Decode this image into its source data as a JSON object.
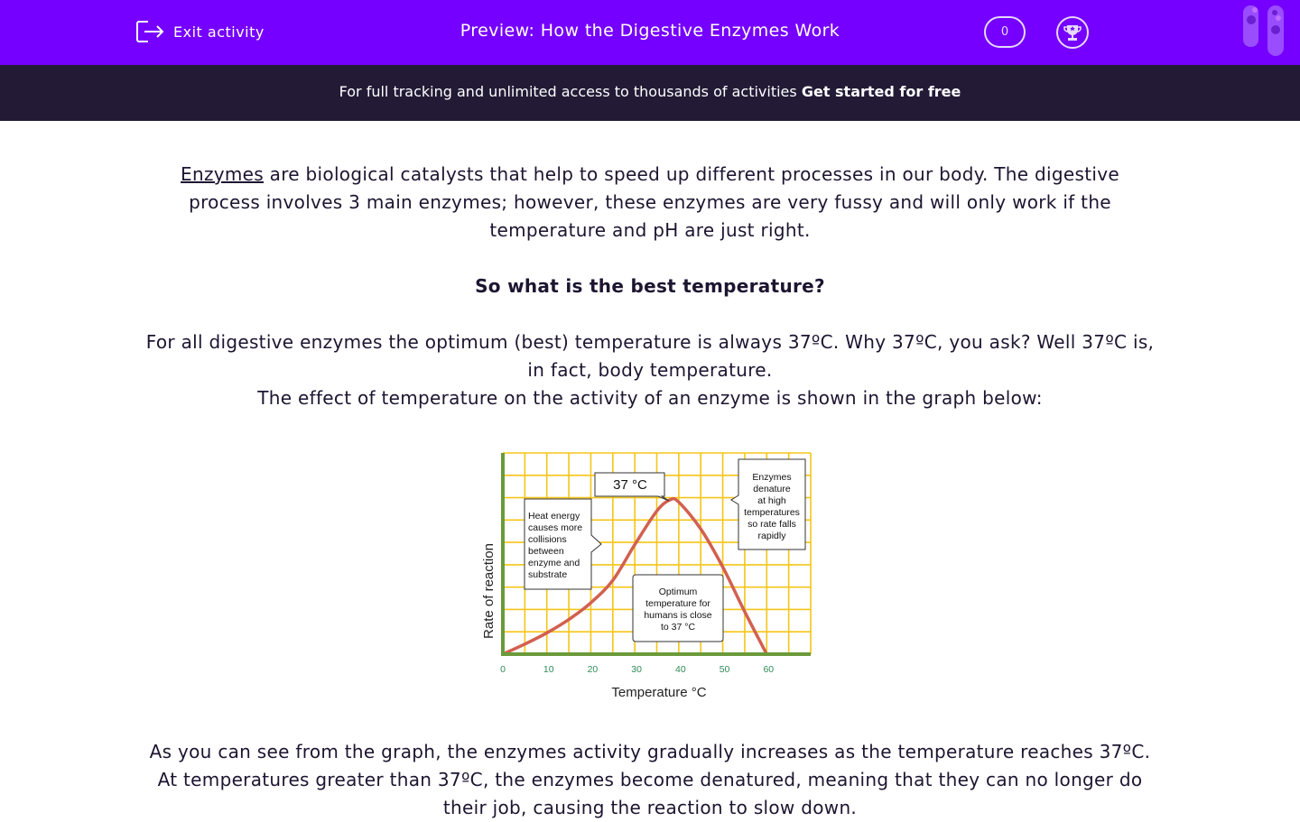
{
  "header": {
    "exit_label": "Exit activity",
    "title": "Preview: How the Digestive Enzymes Work",
    "count": "0",
    "icons": [
      "exit-icon",
      "trophy-icon",
      "test-tubes-icon"
    ]
  },
  "banner": {
    "text": "For full tracking and unlimited access to thousands of activities ",
    "link": "Get started for free"
  },
  "content": {
    "p1_link": "Enzymes",
    "p1_rest": " are biological catalysts that help to speed up different processes in our body. The digestive process involves 3 main enzymes; however, these enzymes are very fussy and will only work if the temperature and pH are just right.",
    "heading": "So what is the best temperature?",
    "p3a": "For all digestive enzymes the optimum (best) temperature is always 37ºC. Why 37ºC, you ask?  Well 37ºC is, in fact, body temperature.",
    "p3b": "The effect of temperature on the activity of an enzyme is shown in the graph below:",
    "p4": "As you can see from the graph, the enzymes activity gradually increases as the temperature reaches 37ºC.  At temperatures greater than 37ºC, the enzymes become denatured, meaning that they can no longer do their job, causing the reaction to slow down."
  },
  "chart_data": {
    "type": "line",
    "xlabel": "Temperature °C",
    "ylabel": "Rate of reaction",
    "xlim": [
      0,
      70
    ],
    "ylim": [
      0,
      9
    ],
    "xticks": [
      "0",
      "10",
      "20",
      "30",
      "40",
      "50",
      "60"
    ],
    "grid": true,
    "series": [
      {
        "x": [
          0,
          5,
          10,
          15,
          20,
          25,
          30,
          35,
          38,
          40,
          45,
          50,
          55,
          60
        ],
        "y": [
          0,
          0.45,
          0.95,
          1.55,
          2.3,
          3.3,
          4.9,
          6.4,
          6.9,
          6.8,
          5.6,
          3.9,
          1.9,
          0
        ]
      }
    ],
    "annotations": [
      "37 °C",
      "Heat energy causes more collisions between enzyme and substrate",
      "Enzymes denature at high temperatures so rate falls rapidly",
      "Optimum temperature for humans is close to 37 °C"
    ],
    "colors": {
      "grid": "#f5c518",
      "axis": "#6a9a3a",
      "line": "#d2604f",
      "tick": "#2e8b57"
    }
  }
}
